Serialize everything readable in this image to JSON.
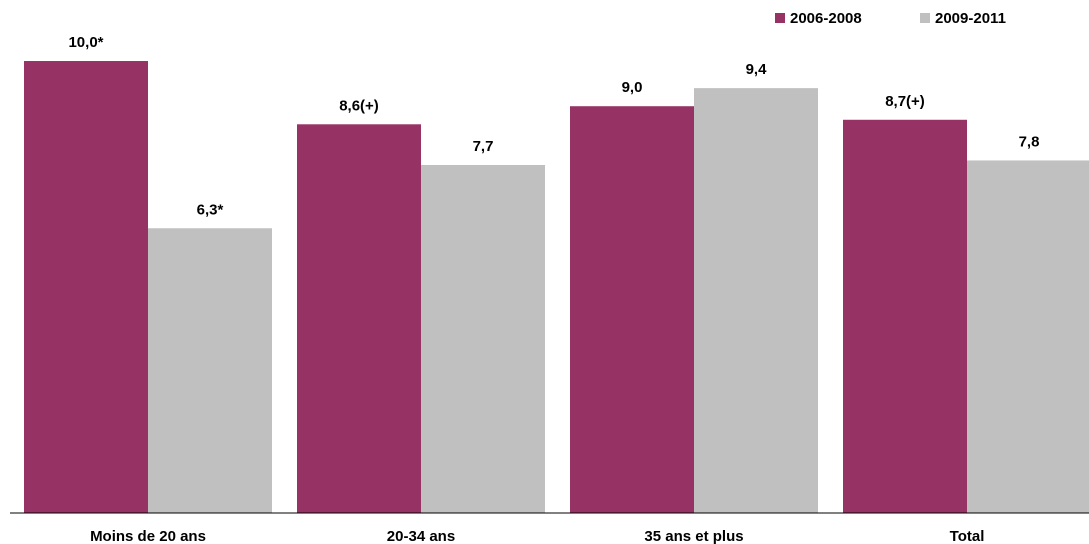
{
  "chart_data": {
    "type": "bar",
    "categories": [
      "Moins de 20 ans",
      "20-34 ans",
      "35 ans et plus",
      "Total"
    ],
    "series": [
      {
        "name": "2006-2008",
        "color": "#963264",
        "values": [
          10.0,
          8.6,
          9.0,
          8.7
        ],
        "labels": [
          "10,0*",
          "8,6(+)",
          "9,0",
          "8,7(+)"
        ]
      },
      {
        "name": "2009-2011",
        "color": "#c0c0c0",
        "values": [
          6.3,
          7.7,
          9.4,
          7.8
        ],
        "labels": [
          "6,3*",
          "7,7",
          "9,4",
          "7,8"
        ]
      }
    ],
    "title": "",
    "xlabel": "",
    "ylabel": "",
    "ylim": [
      0,
      11.35
    ],
    "grid": false,
    "legend": "top-right"
  }
}
